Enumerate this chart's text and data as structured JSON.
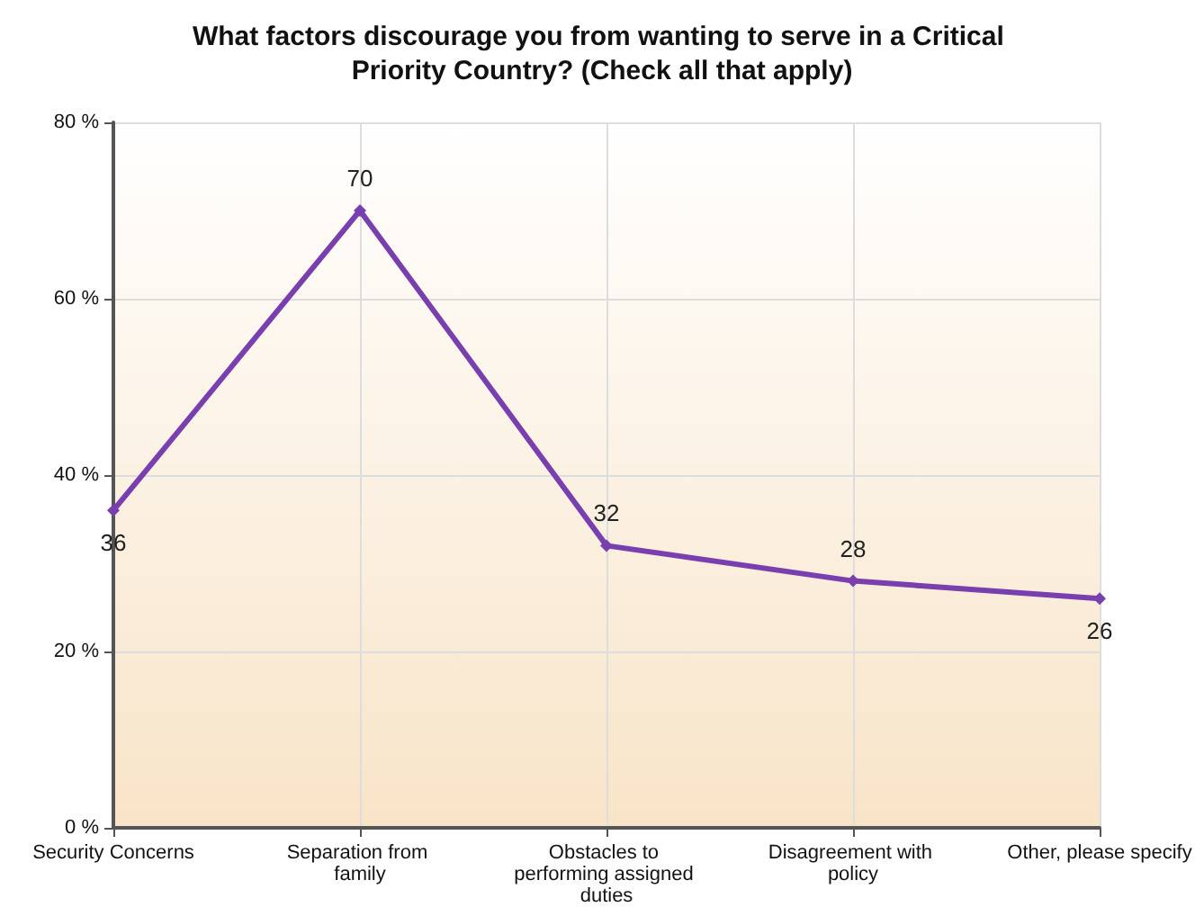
{
  "chart_data": {
    "type": "line",
    "title": "What factors discourage you from wanting to serve in a Critical Priority Country? (Check all that apply)",
    "categories": [
      "Security Concerns",
      "Separation from family",
      "Obstacles to performing assigned duties",
      "Disagreement with policy",
      "Other, please specify"
    ],
    "series": [
      {
        "color": "#7a3fae",
        "values": [
          36,
          70,
          32,
          28,
          26
        ]
      }
    ],
    "ylim": [
      0,
      80
    ],
    "yticks": [
      {
        "value": 0,
        "label": "0 %"
      },
      {
        "value": 20,
        "label": "20 %"
      },
      {
        "value": 40,
        "label": "40 %"
      },
      {
        "value": 60,
        "label": "60 %"
      },
      {
        "value": 80,
        "label": "80 %"
      }
    ],
    "grid": true,
    "data_labels": true,
    "marker": "diamond",
    "line_style": "solid"
  }
}
